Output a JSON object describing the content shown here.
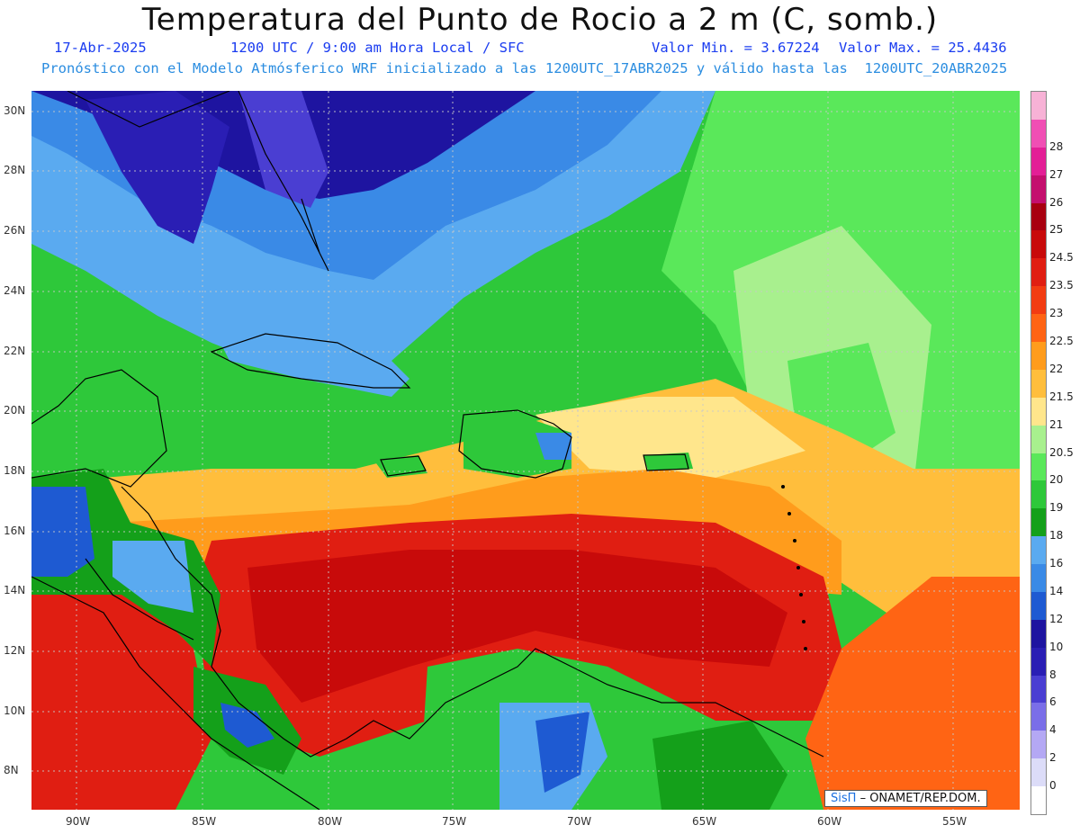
{
  "header": {
    "title": "Temperatura del Punto de Rocio a 2 m (C, somb.)",
    "date": "17-Abr-2025",
    "time_info": "1200 UTC / 9:00 am Hora Local / SFC",
    "min_value": "Valor Min. = 3.67224",
    "max_value": "Valor Max. = 25.4436",
    "model_info": "Pronóstico con el Modelo Atmósferico WRF inicializado a las 1200UTC_17ABR2025 y válido hasta las  1200UTC_20ABR2025"
  },
  "axes": {
    "lat_labels": [
      "30N",
      "28N",
      "26N",
      "24N",
      "22N",
      "20N",
      "18N",
      "16N",
      "14N",
      "12N",
      "10N",
      "8N"
    ],
    "lon_labels": [
      "90W",
      "85W",
      "80W",
      "75W",
      "70W",
      "65W",
      "60W",
      "55W"
    ]
  },
  "colorbar": {
    "levels": [
      {
        "label": "",
        "color": "#f7b2d6"
      },
      {
        "label": "28",
        "color": "#f04fb4"
      },
      {
        "label": "27",
        "color": "#e31f96"
      },
      {
        "label": "26",
        "color": "#c40f6e"
      },
      {
        "label": "25",
        "color": "#a80010"
      },
      {
        "label": "24.5",
        "color": "#c80a0a"
      },
      {
        "label": "23.5",
        "color": "#e01e12"
      },
      {
        "label": "23",
        "color": "#f23c12"
      },
      {
        "label": "22.5",
        "color": "#ff6414"
      },
      {
        "label": "22",
        "color": "#ff9c1c"
      },
      {
        "label": "21.5",
        "color": "#ffbe3c"
      },
      {
        "label": "21",
        "color": "#ffe68c"
      },
      {
        "label": "20.5",
        "color": "#a8f08e"
      },
      {
        "label": "20",
        "color": "#5ae85a"
      },
      {
        "label": "19",
        "color": "#2ec83a"
      },
      {
        "label": "18",
        "color": "#14a01a"
      },
      {
        "label": "16",
        "color": "#5aaaf0"
      },
      {
        "label": "14",
        "color": "#3a8ae6"
      },
      {
        "label": "12",
        "color": "#1e5ad2"
      },
      {
        "label": "10",
        "color": "#1e14a0"
      },
      {
        "label": "8",
        "color": "#2a1eb4"
      },
      {
        "label": "6",
        "color": "#4a3ed2"
      },
      {
        "label": "4",
        "color": "#7a6ee8"
      },
      {
        "label": "2",
        "color": "#b4a8f4"
      },
      {
        "label": "0",
        "color": "#dcdcf8"
      },
      {
        "label": "",
        "color": "#ffffff"
      }
    ]
  },
  "credit": {
    "logo": "SisΠ",
    "text": "– ONAMET/REP.DOM."
  }
}
